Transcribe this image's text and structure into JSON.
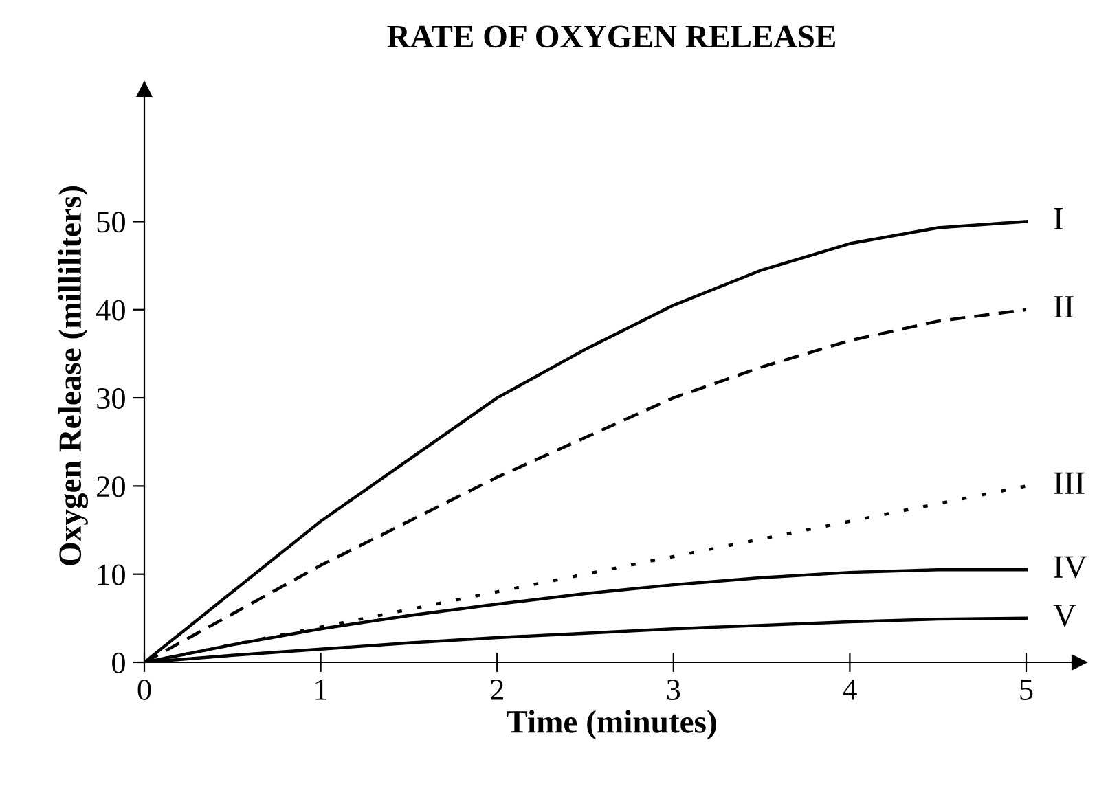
{
  "chart_data": {
    "type": "line",
    "title": "RATE OF OXYGEN RELEASE",
    "xlabel": "Time (minutes)",
    "ylabel": "Oxygen Release (milliliters)",
    "x": [
      0,
      0.5,
      1,
      1.5,
      2,
      2.5,
      3,
      3.5,
      4,
      4.5,
      5
    ],
    "series": [
      {
        "name": "I",
        "color": "#000000",
        "line_style": "solid",
        "values": [
          0,
          8,
          16,
          23,
          30,
          35.5,
          40.5,
          44.5,
          47.5,
          49.3,
          50
        ]
      },
      {
        "name": "II",
        "color": "#000000",
        "line_style": "dashed",
        "values": [
          0,
          5.5,
          11,
          16,
          21,
          25.5,
          30,
          33.5,
          36.5,
          38.7,
          40
        ]
      },
      {
        "name": "III",
        "color": "#000000",
        "line_style": "dotted",
        "values": [
          0,
          2,
          4,
          6,
          8,
          10,
          12,
          14,
          16,
          18,
          20
        ]
      },
      {
        "name": "IV",
        "color": "#000000",
        "line_style": "solid",
        "values": [
          0,
          2,
          3.8,
          5.3,
          6.6,
          7.8,
          8.8,
          9.6,
          10.2,
          10.5,
          10.5
        ]
      },
      {
        "name": "V",
        "color": "#000000",
        "line_style": "solid",
        "values": [
          0,
          0.8,
          1.5,
          2.2,
          2.8,
          3.3,
          3.8,
          4.2,
          4.6,
          4.9,
          5
        ]
      }
    ],
    "xlim": [
      0,
      5.3
    ],
    "ylim": [
      0,
      65
    ],
    "xticks": [
      0,
      1,
      2,
      3,
      4,
      5
    ],
    "yticks": [
      0,
      10,
      20,
      30,
      40,
      50
    ],
    "grid": false,
    "legend": false,
    "marker": "none"
  }
}
